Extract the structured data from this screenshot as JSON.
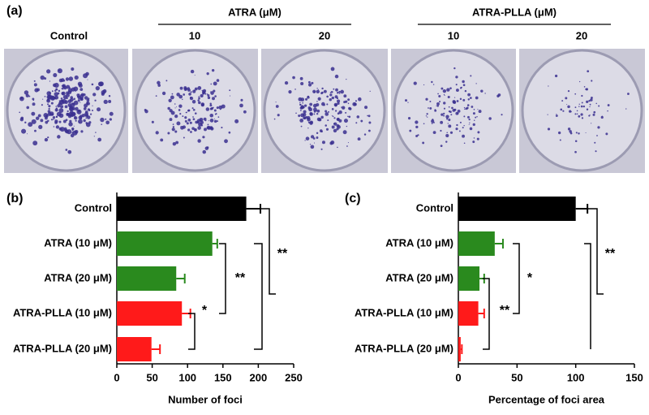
{
  "panel_a": {
    "label": "(a)",
    "control": "Control",
    "groups": [
      {
        "name": "ATRA (μM)",
        "doses": [
          "10",
          "20"
        ]
      },
      {
        "name": "ATRA-PLLA (μM)",
        "doses": [
          "10",
          "20"
        ]
      }
    ]
  },
  "chart_data": [
    {
      "type": "hbar",
      "panel_label": "(b)",
      "xlabel": "Number of foci",
      "categories": [
        "Control",
        "ATRA (10 μM)",
        "ATRA (20 μM)",
        "ATRA-PLLA (10 μM)",
        "ATRA-PLLA (20 μM)"
      ],
      "values": [
        183,
        135,
        84,
        92,
        49
      ],
      "errors": [
        20,
        7,
        12,
        12,
        12
      ],
      "colors": [
        "#000000",
        "#2a8a1e",
        "#2a8a1e",
        "#ff1a1a",
        "#ff1a1a"
      ],
      "xlim": [
        0,
        250
      ],
      "xticks": [
        0,
        50,
        100,
        150,
        200,
        250
      ],
      "annotations": [
        "**",
        "**",
        "*"
      ]
    },
    {
      "type": "hbar",
      "panel_label": "(c)",
      "xlabel": "Percentage of foci area",
      "categories": [
        "Control",
        "ATRA (10 μM)",
        "ATRA (20 μM)",
        "ATRA-PLLA (10 μM)",
        "ATRA-PLLA (20 μM)"
      ],
      "values": [
        100,
        31,
        18,
        17,
        2
      ],
      "errors": [
        10,
        7,
        4,
        5,
        1
      ],
      "colors": [
        "#000000",
        "#2a8a1e",
        "#2a8a1e",
        "#ff1a1a",
        "#ff1a1a"
      ],
      "xlim": [
        0,
        150
      ],
      "xticks": [
        0,
        50,
        100,
        150
      ],
      "annotations": [
        "**",
        "*",
        "**"
      ]
    }
  ]
}
